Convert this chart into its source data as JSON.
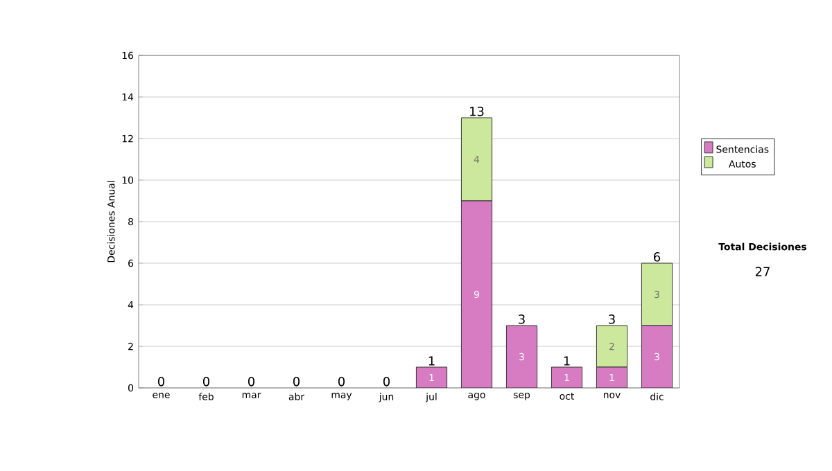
{
  "chart_data": {
    "type": "bar",
    "stacked": true,
    "ylabel": "Decisiones Anual",
    "categories": [
      "ene",
      "feb",
      "mar",
      "abr",
      "may",
      "jun",
      "jul",
      "ago",
      "sep",
      "oct",
      "nov",
      "dic"
    ],
    "series": [
      {
        "name": "Sentencias",
        "color": "#d77cc2",
        "values": [
          0,
          0,
          0,
          0,
          0,
          0,
          1,
          9,
          3,
          1,
          1,
          3
        ],
        "value_labels": [
          null,
          null,
          null,
          null,
          null,
          null,
          "1",
          "9",
          "3",
          "1",
          "1",
          "3"
        ]
      },
      {
        "name": "Autos",
        "color": "#cce89c",
        "values": [
          0,
          0,
          0,
          0,
          0,
          0,
          0,
          4,
          0,
          0,
          2,
          3
        ],
        "value_labels": [
          null,
          null,
          null,
          null,
          null,
          null,
          null,
          "4",
          null,
          null,
          "2",
          "3"
        ]
      }
    ],
    "totals": [
      "0",
      "0",
      "0",
      "0",
      "0",
      "0",
      "1",
      "13",
      "3",
      "1",
      "3",
      "6"
    ],
    "ylim": [
      0,
      16
    ],
    "yticks": [
      0,
      2,
      4,
      6,
      8,
      10,
      12,
      14,
      16
    ],
    "grid": "y",
    "legend": "right",
    "annotations": [
      "Total Decisiones",
      "27"
    ]
  }
}
